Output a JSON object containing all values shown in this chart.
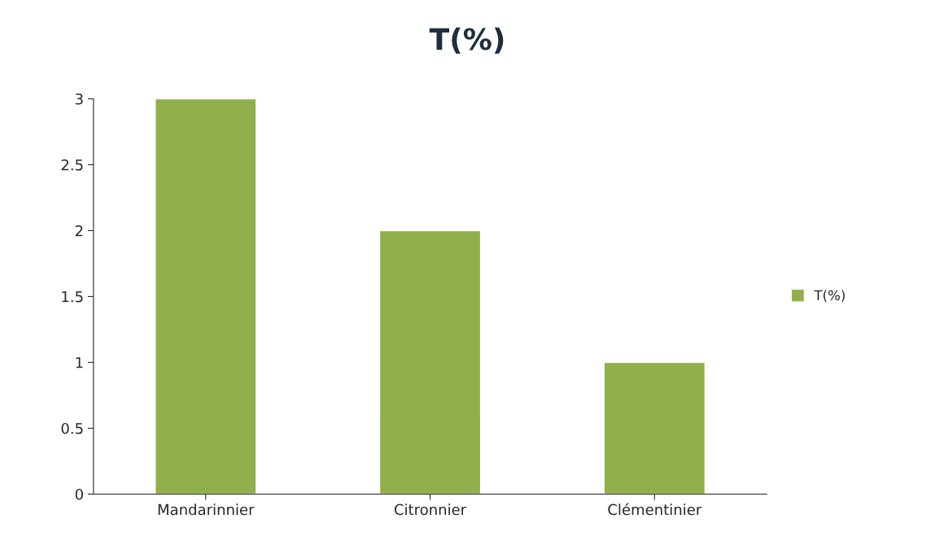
{
  "chart_data": {
    "type": "bar",
    "title": "T(%)",
    "categories": [
      "Mandarinnier",
      "Citronnier",
      "Clémentinier"
    ],
    "series": [
      {
        "name": "T(%)",
        "color": "#8fb04a",
        "values": [
          3,
          2,
          1
        ]
      }
    ],
    "ylim": [
      0,
      3
    ],
    "yticks": [
      0,
      0.5,
      1,
      1.5,
      2,
      2.5,
      3
    ],
    "grid": false,
    "legend": "right"
  }
}
